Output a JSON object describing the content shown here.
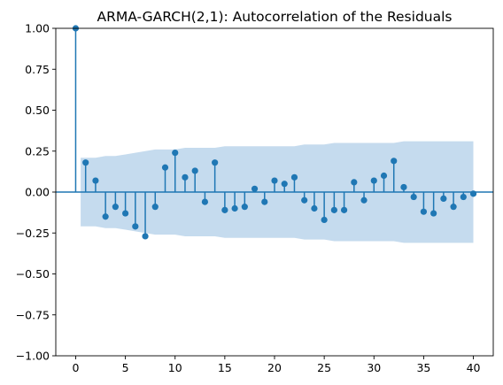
{
  "chart_data": {
    "type": "stem",
    "title": "ARMA-GARCH(2,1): Autocorrelation of the Residuals",
    "xlabel": "",
    "ylabel": "",
    "xlim": [
      -2,
      42
    ],
    "ylim": [
      -1.0,
      1.0
    ],
    "x_ticks": [
      0,
      5,
      10,
      15,
      20,
      25,
      30,
      35,
      40
    ],
    "y_ticks": [
      "-1.00",
      "-0.75",
      "-0.50",
      "-0.25",
      "0.00",
      "0.25",
      "0.50",
      "0.75",
      "1.00"
    ],
    "lags": [
      0,
      1,
      2,
      3,
      4,
      5,
      6,
      7,
      8,
      9,
      10,
      11,
      12,
      13,
      14,
      15,
      16,
      17,
      18,
      19,
      20,
      21,
      22,
      23,
      24,
      25,
      26,
      27,
      28,
      29,
      30,
      31,
      32,
      33,
      34,
      35,
      36,
      37,
      38,
      39,
      40
    ],
    "values": [
      1.0,
      0.18,
      0.07,
      -0.15,
      -0.09,
      -0.13,
      -0.21,
      -0.27,
      -0.09,
      0.15,
      0.24,
      0.09,
      0.13,
      -0.06,
      0.18,
      -0.11,
      -0.1,
      -0.09,
      0.02,
      -0.06,
      0.07,
      0.05,
      0.09,
      -0.05,
      -0.1,
      -0.17,
      -0.11,
      -0.11,
      0.06,
      -0.05,
      0.07,
      0.1,
      0.19,
      0.03,
      -0.03,
      -0.12,
      -0.13,
      -0.04,
      -0.09,
      -0.03,
      -0.01
    ],
    "confidence_band": [
      0.21,
      0.21,
      0.21,
      0.22,
      0.22,
      0.23,
      0.24,
      0.25,
      0.26,
      0.26,
      0.26,
      0.27,
      0.27,
      0.27,
      0.27,
      0.28,
      0.28,
      0.28,
      0.28,
      0.28,
      0.28,
      0.28,
      0.28,
      0.29,
      0.29,
      0.29,
      0.3,
      0.3,
      0.3,
      0.3,
      0.3,
      0.3,
      0.3,
      0.31,
      0.31,
      0.31,
      0.31,
      0.31,
      0.31,
      0.31,
      0.31
    ],
    "colors": {
      "stem": "#1f77b4",
      "band": "#c5dbee",
      "axis": "#000000"
    },
    "grid": false
  }
}
